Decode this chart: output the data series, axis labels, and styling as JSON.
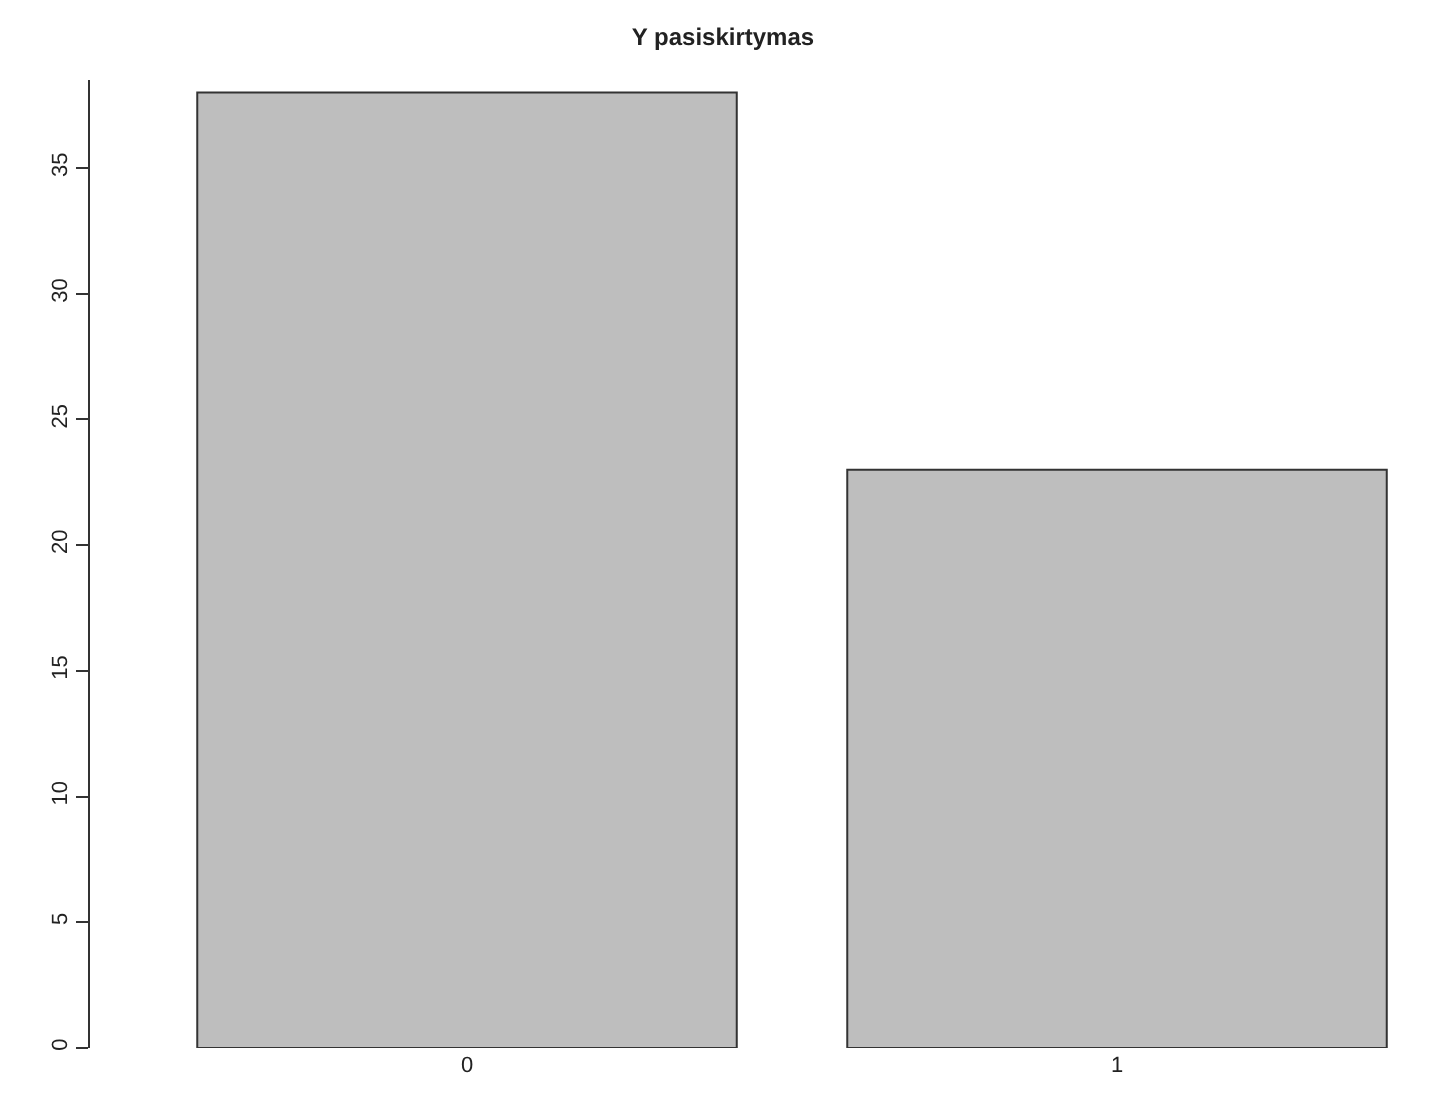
{
  "chart_data": {
    "type": "bar",
    "title": "Y pasiskirtymas",
    "categories": [
      "0",
      "1"
    ],
    "values": [
      38,
      23
    ],
    "color": "#bebebe",
    "ylim": [
      0,
      38.5
    ],
    "yticks": [
      0,
      5,
      10,
      15,
      20,
      25,
      30,
      35
    ]
  }
}
